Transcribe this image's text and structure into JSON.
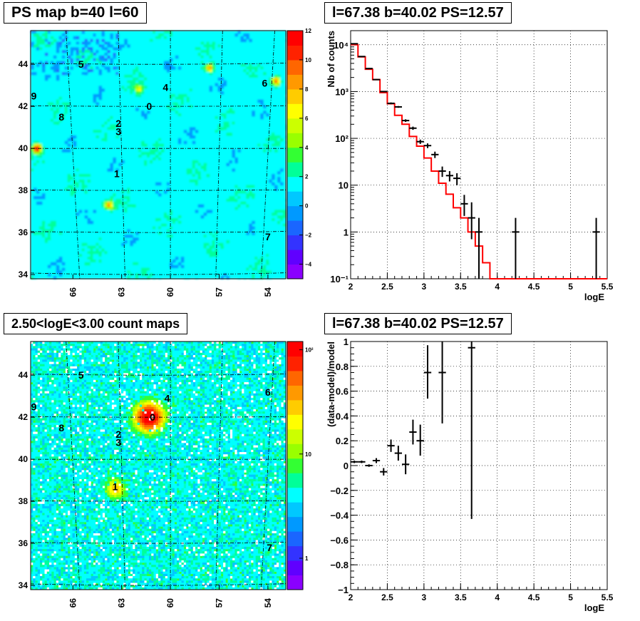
{
  "panels": {
    "tl": {
      "title": "PS map b=40 l=60"
    },
    "tr": {
      "title": "l=67.38 b=40.02 PS=12.57"
    },
    "bl": {
      "title": "2.50<logE<3.00 count maps"
    },
    "br": {
      "title": "l=67.38 b=40.02 PS=12.57"
    }
  },
  "chart_data": [
    {
      "type": "heatmap",
      "title": "PS map b=40 l=60",
      "x_ticks": [
        "66",
        "63",
        "60",
        "57",
        "54"
      ],
      "y_ticks": [
        "34",
        "36",
        "38",
        "40",
        "42",
        "44"
      ],
      "xlim": [
        68.6,
        52.9
      ],
      "ylim": [
        33.8,
        45.6
      ],
      "colorbar": {
        "min": -5,
        "max": 12,
        "ticks": [
          "12",
          "10",
          "8",
          "6",
          "4",
          "2",
          "0",
          "−2",
          "−4"
        ],
        "tick_values": [
          12,
          10,
          8,
          6,
          4,
          2,
          0,
          -2,
          -4
        ]
      },
      "sources": [
        {
          "label": "0",
          "l": 61.3,
          "b": 42.0
        },
        {
          "label": "1",
          "l": 63.3,
          "b": 38.8
        },
        {
          "label": "2",
          "l": 63.2,
          "b": 41.2
        },
        {
          "label": "3",
          "l": 63.2,
          "b": 40.8
        },
        {
          "label": "4",
          "l": 60.3,
          "b": 42.9
        },
        {
          "label": "5",
          "l": 65.5,
          "b": 44.0
        },
        {
          "label": "6",
          "l": 54.2,
          "b": 43.1
        },
        {
          "label": "7",
          "l": 54.0,
          "b": 35.8
        },
        {
          "label": "8",
          "l": 66.7,
          "b": 41.5
        },
        {
          "label": "9",
          "l": 68.4,
          "b": 42.5
        }
      ],
      "hotspots": [
        {
          "l": 68.2,
          "b": 40.0,
          "value": 12
        },
        {
          "l": 53.5,
          "b": 43.2,
          "value": 9
        },
        {
          "l": 63.8,
          "b": 37.3,
          "value": 7
        },
        {
          "l": 57.6,
          "b": 43.8,
          "value": 7
        },
        {
          "l": 61.9,
          "b": 42.8,
          "value": 5
        }
      ]
    },
    {
      "type": "line",
      "xlabel": "logE",
      "ylabel": "Nb of counts",
      "xlim": [
        2,
        5.5
      ],
      "ylim": [
        0.1,
        20000
      ],
      "y_scale": "log",
      "grid": true,
      "x_ticks": [
        "2",
        "2.5",
        "3",
        "3.5",
        "4",
        "4.5",
        "5",
        "5.5"
      ],
      "y_ticks": [
        "10⁻¹",
        "1",
        "10",
        "10²",
        "10³",
        "10⁴"
      ],
      "series": [
        {
          "style": "step",
          "color": "#ff0000",
          "bin_edges": [
            2.0,
            2.1,
            2.2,
            2.3,
            2.4,
            2.5,
            2.6,
            2.7,
            2.8,
            2.9,
            3.0,
            3.1,
            3.2,
            3.3,
            3.4,
            3.5,
            3.6,
            3.7,
            3.8,
            3.9,
            4.0,
            4.1,
            4.2,
            4.3,
            4.4,
            4.5,
            4.6,
            4.7,
            4.8,
            4.9,
            5.0,
            5.1,
            5.2,
            5.3,
            5.4,
            5.5
          ],
          "values": [
            10000,
            5500,
            3000,
            1800,
            950,
            550,
            310,
            200,
            110,
            68,
            38,
            20,
            11,
            6.4,
            3.3,
            2.0,
            1.0,
            0.5,
            0.22,
            0.1,
            0.1,
            0.1,
            0.1,
            0.1,
            0.1,
            0.1,
            0.1,
            0.1,
            0.1,
            0.1,
            0.1,
            0.1,
            0.1,
            0.1,
            0.1
          ]
        },
        {
          "style": "errorbar",
          "color": "#000000",
          "x": [
            2.05,
            2.15,
            2.25,
            2.35,
            2.45,
            2.55,
            2.65,
            2.75,
            2.85,
            2.95,
            3.05,
            3.15,
            3.25,
            3.35,
            3.45,
            3.55,
            3.65,
            3.75,
            4.25,
            5.35
          ],
          "y": [
            10500,
            5600,
            3100,
            1800,
            1000,
            560,
            470,
            240,
            165,
            85,
            70,
            45,
            20,
            16,
            14,
            4,
            2,
            1,
            1,
            1
          ],
          "y_low": [
            10300,
            5450,
            3000,
            1750,
            970,
            535,
            450,
            225,
            152,
            76,
            62,
            38,
            15,
            12,
            10,
            2.2,
            0.7,
            0.1,
            0.1,
            0.1
          ],
          "y_high": [
            10700,
            5750,
            3200,
            1850,
            1030,
            585,
            490,
            255,
            178,
            94,
            78,
            52,
            25,
            20,
            18,
            6.2,
            4.3,
            2,
            2,
            2
          ]
        }
      ]
    },
    {
      "type": "heatmap",
      "title": "2.50<logE<3.00 count maps",
      "x_ticks": [
        "66",
        "63",
        "60",
        "57",
        "54"
      ],
      "y_ticks": [
        "34",
        "36",
        "38",
        "40",
        "42",
        "44"
      ],
      "xlim": [
        68.6,
        52.9
      ],
      "ylim": [
        33.8,
        45.6
      ],
      "colorbar": {
        "log": true,
        "min": 0.5,
        "max": 120,
        "ticks": [
          "10²",
          "10",
          "1"
        ],
        "tick_values": [
          100,
          10,
          1
        ]
      },
      "sources": [
        {
          "label": "0",
          "l": 61.1,
          "b": 42.0
        },
        {
          "label": "1",
          "l": 63.4,
          "b": 38.7
        },
        {
          "label": "2",
          "l": 63.2,
          "b": 41.2
        },
        {
          "label": "3",
          "l": 63.2,
          "b": 40.8
        },
        {
          "label": "4",
          "l": 60.2,
          "b": 42.9
        },
        {
          "label": "5",
          "l": 65.5,
          "b": 44.0
        },
        {
          "label": "6",
          "l": 54.0,
          "b": 43.2
        },
        {
          "label": "7",
          "l": 53.9,
          "b": 35.8
        },
        {
          "label": "8",
          "l": 66.7,
          "b": 41.5
        },
        {
          "label": "9",
          "l": 68.4,
          "b": 42.5
        }
      ],
      "hotspots": [
        {
          "l": 61.3,
          "b": 42.0,
          "value": 120
        },
        {
          "l": 63.4,
          "b": 38.6,
          "value": 25
        }
      ]
    },
    {
      "type": "scatter",
      "xlabel": "logE",
      "ylabel": "(data-model)/model",
      "xlim": [
        2,
        5.5
      ],
      "ylim": [
        -1,
        1
      ],
      "grid": true,
      "x_ticks": [
        "2",
        "2.5",
        "3",
        "3.5",
        "4",
        "4.5",
        "5",
        "5.5"
      ],
      "y_ticks": [
        "−1",
        "−0.8",
        "−0.6",
        "−0.4",
        "−0.2",
        "0",
        "0.2",
        "0.4",
        "0.6",
        "0.8",
        "1"
      ],
      "y_tick_values": [
        -1,
        -0.8,
        -0.6,
        -0.4,
        -0.2,
        0,
        0.2,
        0.4,
        0.6,
        0.8,
        1
      ],
      "series": [
        {
          "style": "errorbar",
          "color": "#000000",
          "x": [
            2.05,
            2.15,
            2.25,
            2.35,
            2.45,
            2.55,
            2.65,
            2.75,
            2.85,
            2.95,
            3.05,
            3.25,
            3.65
          ],
          "y": [
            0.03,
            0.03,
            0.0,
            0.04,
            -0.05,
            0.16,
            0.1,
            0.01,
            0.27,
            0.2,
            0.75,
            0.75,
            0.95
          ],
          "y_low": [
            0.02,
            0.02,
            -0.01,
            0.02,
            -0.08,
            0.11,
            0.04,
            -0.07,
            0.17,
            0.08,
            0.54,
            0.34,
            -0.43
          ],
          "y_high": [
            0.04,
            0.04,
            0.01,
            0.06,
            -0.02,
            0.21,
            0.16,
            0.09,
            0.37,
            0.33,
            0.97,
            1.0,
            1.0
          ]
        }
      ]
    }
  ]
}
